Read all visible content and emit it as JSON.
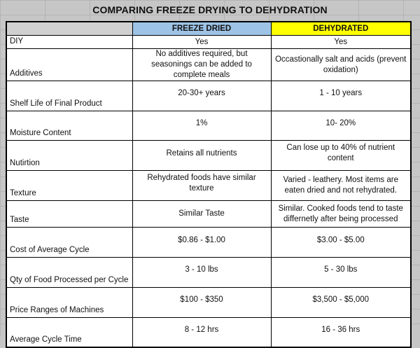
{
  "title": "COMPARING FREEZE DRYING TO DEHYDRATION",
  "columns": {
    "freeze_dried": "FREEZE DRIED",
    "dehydrated": "DEHYDRATED"
  },
  "header_colors": {
    "freeze_dried": "#9dc3e6",
    "dehydrated": "#ffff00"
  },
  "rows": [
    {
      "label": "DIY",
      "freeze_dried": "Yes",
      "dehydrated": "Yes"
    },
    {
      "label": "Additives",
      "freeze_dried": "No additives required, but seasonings can be added to complete meals",
      "dehydrated": "Occastionally salt and acids (prevent oxidation)"
    },
    {
      "label": "Shelf Life of Final Product",
      "freeze_dried": "20-30+ years",
      "dehydrated": "1 - 10 years"
    },
    {
      "label": "Moisture Content",
      "freeze_dried": "1%",
      "dehydrated": "10- 20%"
    },
    {
      "label": "Nutirtion",
      "freeze_dried": "Retains all nutrients",
      "dehydrated": "Can lose up to 40% of nutrient content"
    },
    {
      "label": "Texture",
      "freeze_dried": "Rehydrated foods have similar texture",
      "dehydrated": "Varied - leathery.  Most items are eaten dried and not rehydrated."
    },
    {
      "label": "Taste",
      "freeze_dried": "Similar Taste",
      "dehydrated": "Similar.  Cooked foods tend to taste differnetly after being processed"
    },
    {
      "label": "Cost of Average Cycle",
      "freeze_dried": "$0.86 - $1.00",
      "dehydrated": "$3.00 - $5.00"
    },
    {
      "label": "Qty of Food Processed per Cycle",
      "freeze_dried": "3 - 10 lbs",
      "dehydrated": "5 - 30 lbs"
    },
    {
      "label": "Price Ranges of Machines",
      "freeze_dried": "$100 - $350",
      "dehydrated": "$3,500 - $5,000"
    },
    {
      "label": "Average Cycle Time",
      "freeze_dried": "8 - 12 hrs",
      "dehydrated": "16 - 36 hrs"
    }
  ]
}
